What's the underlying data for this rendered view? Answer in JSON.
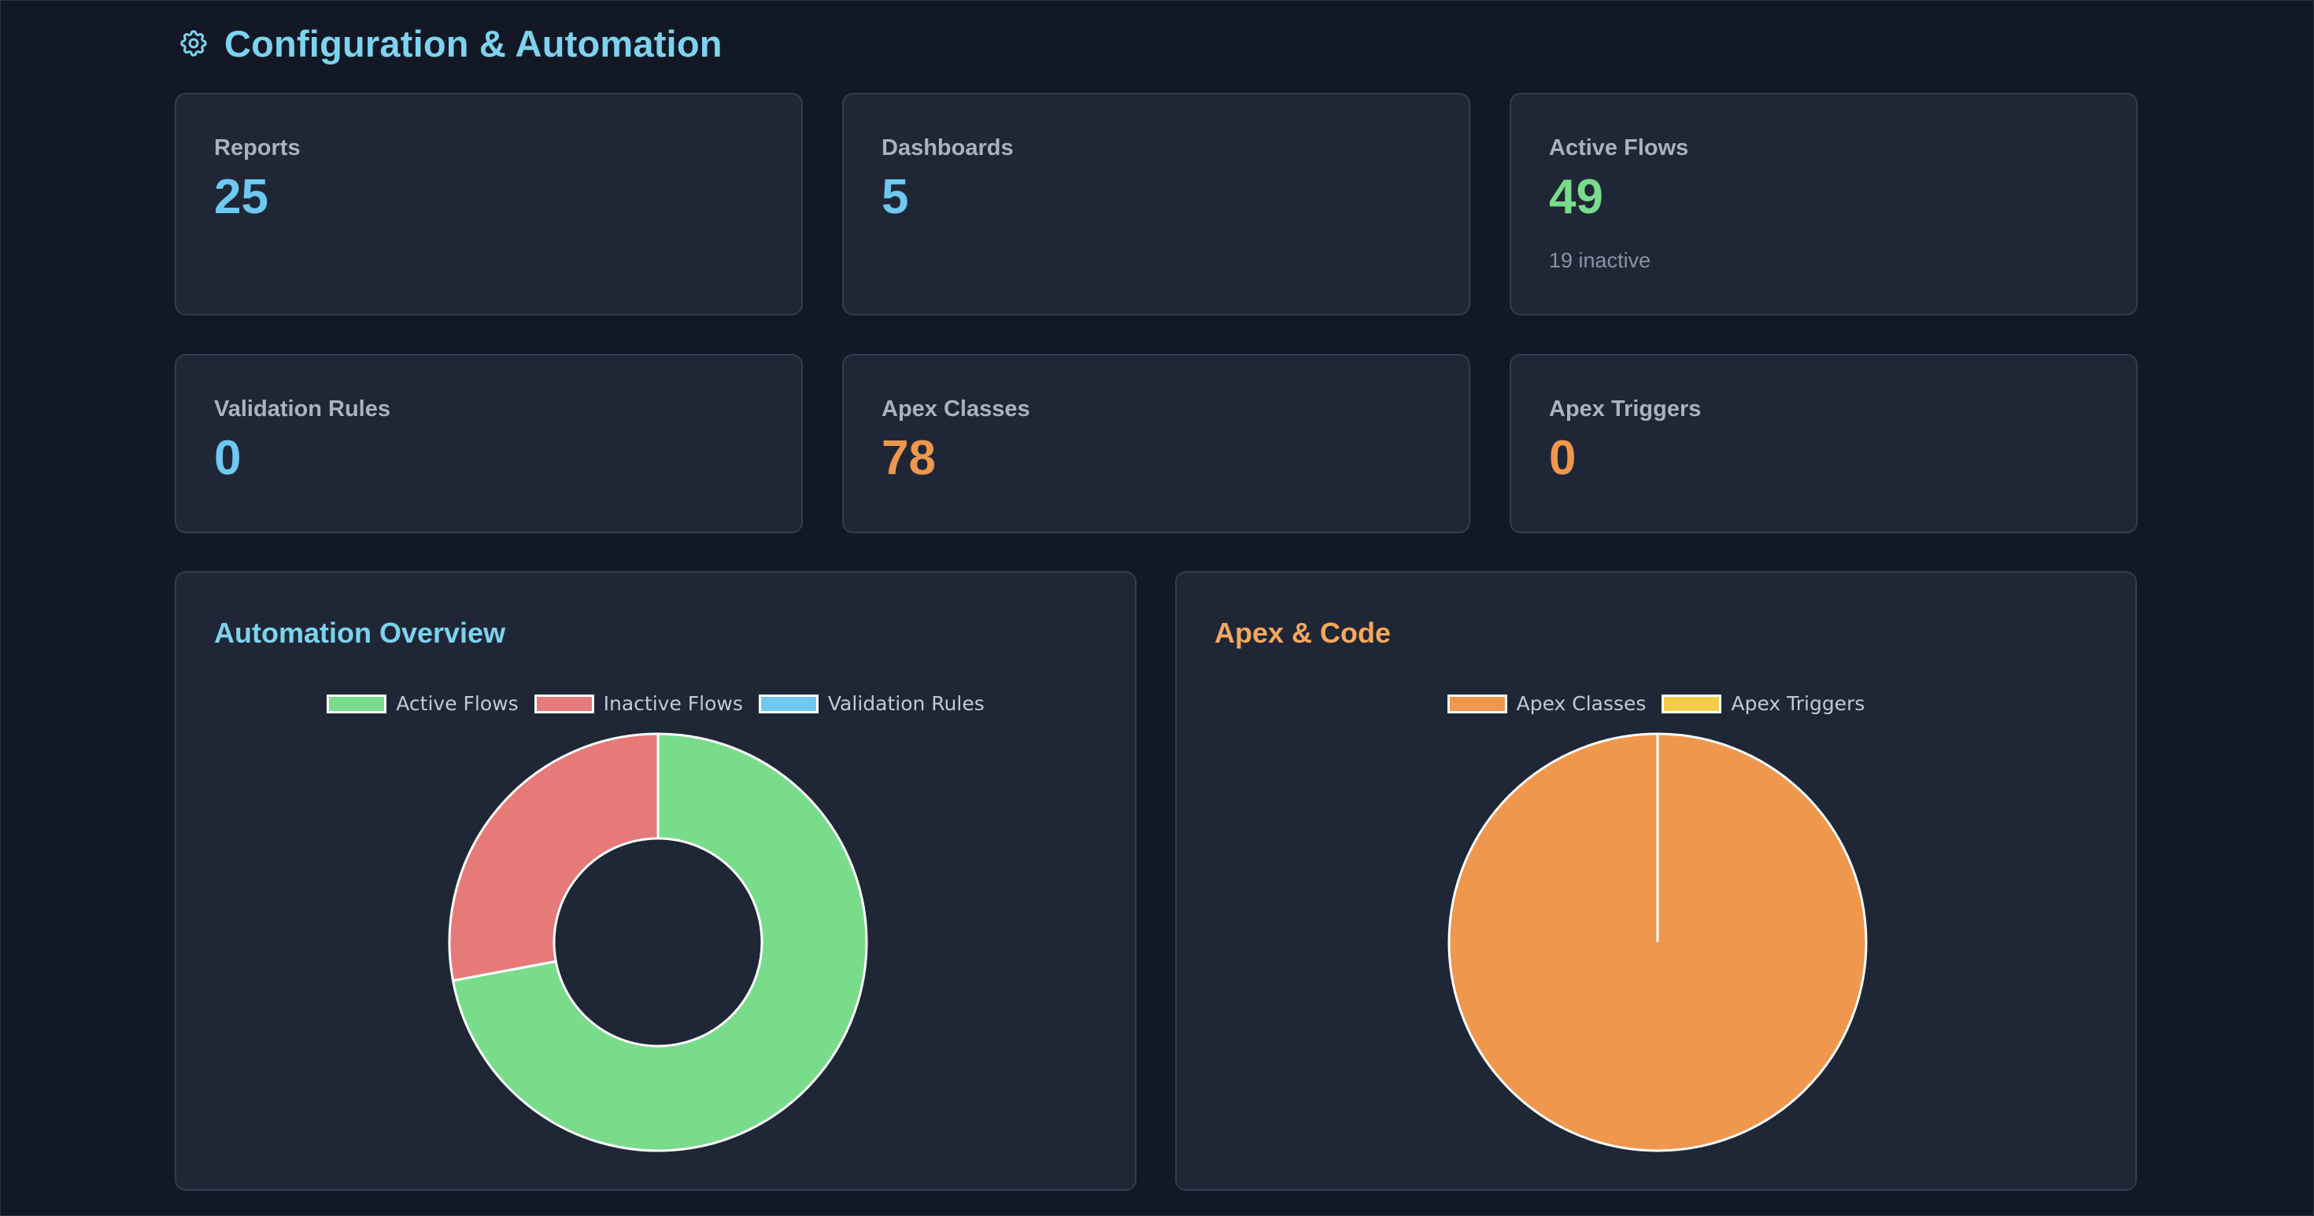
{
  "section": {
    "title": "Configuration & Automation",
    "icon": "gear-icon",
    "title_color": "#7dd3ee"
  },
  "stats": [
    {
      "label": "Reports",
      "value": "25",
      "color": "#6ec8f0"
    },
    {
      "label": "Dashboards",
      "value": "5",
      "color": "#6ec8f0"
    },
    {
      "label": "Active Flows",
      "value": "49",
      "sub": "19 inactive",
      "color": "#79dc8b"
    },
    {
      "label": "Validation Rules",
      "value": "0",
      "color": "#6ec8f0"
    },
    {
      "label": "Apex Classes",
      "value": "78",
      "color": "#ee974d"
    },
    {
      "label": "Apex Triggers",
      "value": "0",
      "color": "#ee974d"
    }
  ],
  "chart_data": [
    {
      "type": "doughnut",
      "title": "Automation Overview",
      "title_color": "#7dd3ee",
      "legend_position": "top",
      "labels": [
        "Active Flows",
        "Inactive Flows",
        "Validation Rules"
      ],
      "values": [
        49,
        19,
        0
      ],
      "colors": [
        "#79dc8b",
        "#e57a78",
        "#6ec8f0"
      ]
    },
    {
      "type": "pie",
      "title": "Apex & Code",
      "title_color": "#f5a85e",
      "legend_position": "top",
      "labels": [
        "Apex Classes",
        "Apex Triggers"
      ],
      "values": [
        78,
        0
      ],
      "colors": [
        "#ee974d",
        "#f1cd4b"
      ]
    }
  ]
}
